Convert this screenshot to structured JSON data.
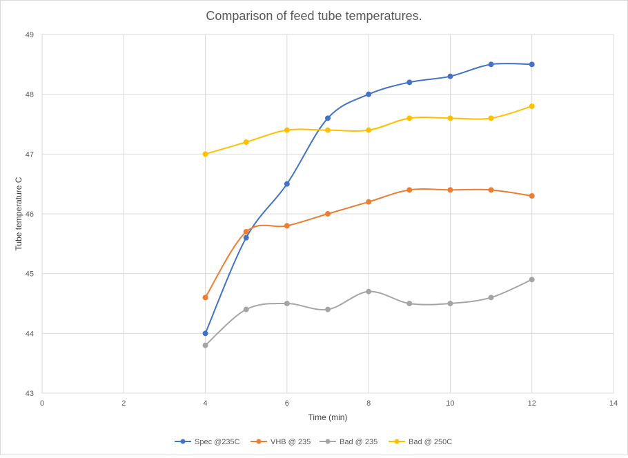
{
  "chart_data": {
    "type": "scatter",
    "title": "Comparison of feed tube temperatures.",
    "xlabel": "Time (min)",
    "ylabel": "Tube temperature  C",
    "xlim": [
      0,
      14
    ],
    "ylim": [
      43,
      49
    ],
    "xticks": [
      0,
      2,
      4,
      6,
      8,
      10,
      12,
      14
    ],
    "yticks": [
      43,
      44,
      45,
      46,
      47,
      48,
      49
    ],
    "grid": true,
    "smooth_lines": true,
    "legend_position": "bottom",
    "x": [
      4,
      5,
      6,
      7,
      8,
      9,
      10,
      11,
      12
    ],
    "series": [
      {
        "name": "Spec @235C",
        "color": "#4472c4",
        "values": [
          44.0,
          45.6,
          46.5,
          47.6,
          48.0,
          48.2,
          48.3,
          48.5,
          48.5
        ]
      },
      {
        "name": "VHB @ 235",
        "color": "#ed7d31",
        "values": [
          44.6,
          45.7,
          45.8,
          46.0,
          46.2,
          46.4,
          46.4,
          46.4,
          46.3
        ]
      },
      {
        "name": "Bad @ 235",
        "color": "#a5a5a5",
        "values": [
          43.8,
          44.4,
          44.5,
          44.4,
          44.7,
          44.5,
          44.5,
          44.6,
          44.9
        ]
      },
      {
        "name": "Bad @ 250C",
        "color": "#ffc000",
        "values": [
          47.0,
          47.2,
          47.4,
          47.4,
          47.4,
          47.6,
          47.6,
          47.6,
          47.8
        ]
      }
    ]
  }
}
